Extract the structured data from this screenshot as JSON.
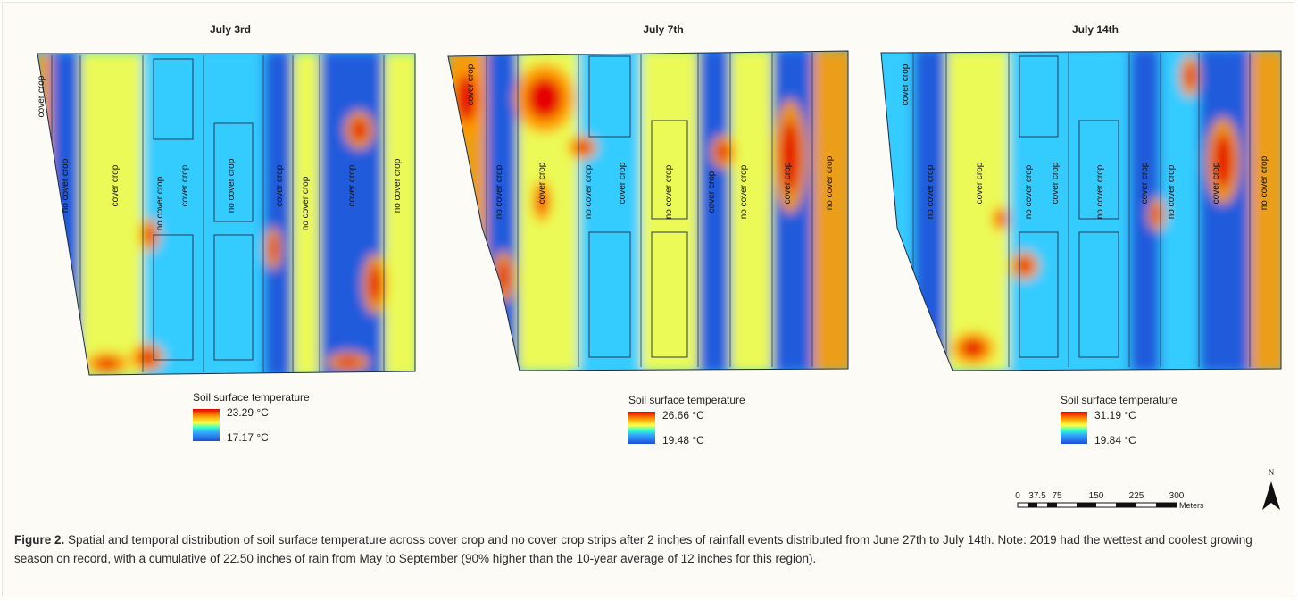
{
  "colors": {
    "hot": "#e60000",
    "warm": "#ff9900",
    "mid": "#ffff44",
    "cool": "#33ccff",
    "cold": "#1e4fd8"
  },
  "panels": [
    {
      "title": "July 3rd",
      "legend_title": "Soil surface temperature",
      "max": "23.29 °C",
      "min": "17.17 °C",
      "strip_labels": [
        "cover crop",
        "no cover crop",
        "cover crop",
        "no cover crop",
        "cover crop",
        "no cover crop",
        "cover crop",
        "no cover crop",
        "cover crop",
        "no cover crop"
      ]
    },
    {
      "title": "July 7th",
      "legend_title": "Soil surface temperature",
      "max": "26.66 °C",
      "min": "19.48 °C",
      "strip_labels": [
        "cover crop",
        "no cover crop",
        "cover crop",
        "no cover crop",
        "cover crop",
        "no cover crop",
        "cover crop",
        "no cover crop",
        "cover crop",
        "no cover crop"
      ]
    },
    {
      "title": "July 14th",
      "legend_title": "Soil surface temperature",
      "max": "31.19 °C",
      "min": "19.84 °C",
      "strip_labels": [
        "cover crop",
        "no cover crop",
        "cover crop",
        "no cover crop",
        "cover crop",
        "no cover crop",
        "cover crop",
        "no cover crop",
        "cover crop",
        "no cover crop"
      ]
    }
  ],
  "scale": {
    "ticks": [
      "0",
      "37.5",
      "75",
      "150",
      "225",
      "300"
    ],
    "unit": "Meters",
    "north": "N"
  },
  "caption": {
    "label": "Figure 2.",
    "text": " Spatial and temporal distribution of soil surface temperature across cover crop and no cover crop strips after 2 inches of rainfall events distributed from June 27th to July 14th. Note: 2019 had the wettest and coolest growing season on record, with a cumulative of 22.50 inches of rain from May to September (90% higher than the 10-year average of 12 inches for this region)."
  }
}
